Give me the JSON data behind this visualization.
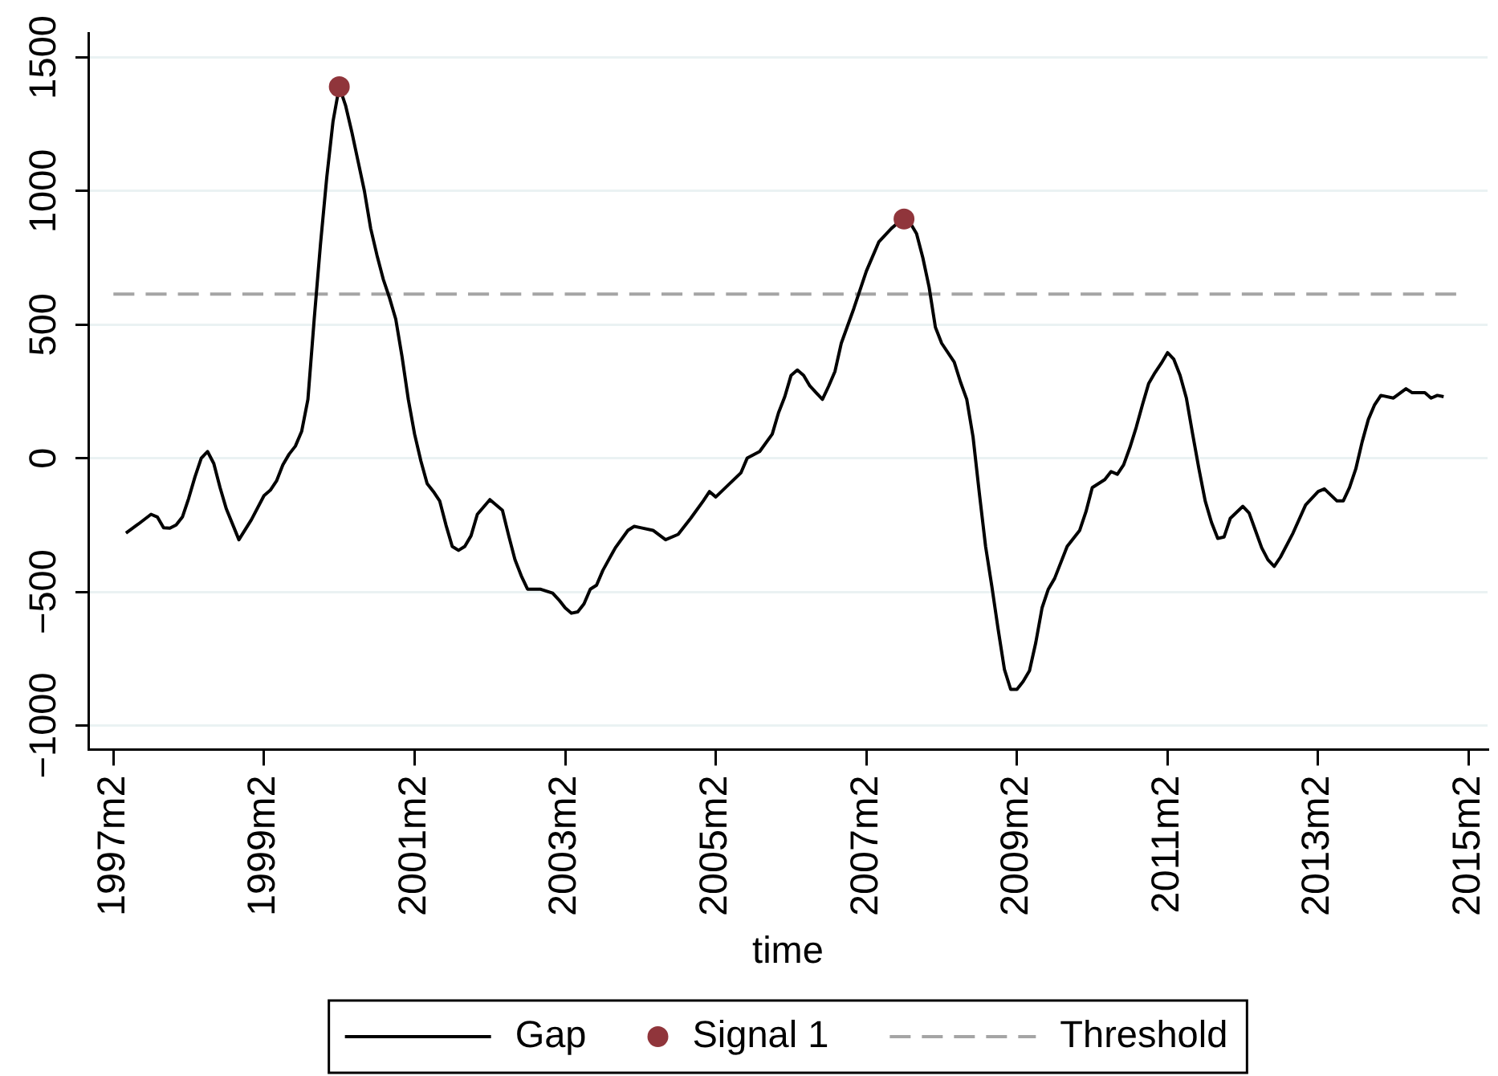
{
  "chart_data": {
    "type": "line",
    "xlabel": "time",
    "series": [
      {
        "name": "Gap",
        "type": "line",
        "color": "#000000",
        "x": [
          "1997-04",
          "1997-06",
          "1997-08",
          "1997-09",
          "1997-10",
          "1997-11",
          "1997-12",
          "1998-01",
          "1998-02",
          "1998-03",
          "1998-04",
          "1998-05",
          "1998-06",
          "1998-07",
          "1998-08",
          "1998-10",
          "1998-12",
          "1999-02",
          "1999-03",
          "1999-04",
          "1999-05",
          "1999-06",
          "1999-07",
          "1999-08",
          "1999-09",
          "1999-10",
          "1999-11",
          "1999-12",
          "2000-01",
          "2000-02",
          "2000-03",
          "2000-04",
          "2000-05",
          "2000-06",
          "2000-07",
          "2000-08",
          "2000-09",
          "2000-10",
          "2000-11",
          "2000-12",
          "2001-01",
          "2001-02",
          "2001-03",
          "2001-04",
          "2001-05",
          "2001-06",
          "2001-07",
          "2001-08",
          "2001-09",
          "2001-10",
          "2001-11",
          "2001-12",
          "2002-02",
          "2002-04",
          "2002-05",
          "2002-06",
          "2002-07",
          "2002-08",
          "2002-10",
          "2002-12",
          "2003-01",
          "2003-02",
          "2003-03",
          "2003-04",
          "2003-05",
          "2003-06",
          "2003-07",
          "2003-08",
          "2003-10",
          "2003-12",
          "2004-01",
          "2004-02",
          "2004-04",
          "2004-06",
          "2004-08",
          "2004-10",
          "2004-12",
          "2005-01",
          "2005-02",
          "2005-04",
          "2005-06",
          "2005-07",
          "2005-09",
          "2005-11",
          "2005-12",
          "2006-01",
          "2006-02",
          "2006-03",
          "2006-04",
          "2006-05",
          "2006-07",
          "2006-08",
          "2006-09",
          "2006-10",
          "2006-12",
          "2007-02",
          "2007-04",
          "2007-06",
          "2007-07",
          "2007-08",
          "2007-09",
          "2007-10",
          "2007-11",
          "2007-12",
          "2008-01",
          "2008-02",
          "2008-04",
          "2008-05",
          "2008-06",
          "2008-07",
          "2008-08",
          "2008-09",
          "2008-10",
          "2008-11",
          "2008-12",
          "2009-01",
          "2009-02",
          "2009-03",
          "2009-04",
          "2009-05",
          "2009-06",
          "2009-07",
          "2009-08",
          "2009-10",
          "2009-12",
          "2010-01",
          "2010-02",
          "2010-04",
          "2010-05",
          "2010-06",
          "2010-07",
          "2010-08",
          "2010-09",
          "2010-10",
          "2010-11",
          "2010-12",
          "2011-01",
          "2011-02",
          "2011-03",
          "2011-04",
          "2011-05",
          "2011-06",
          "2011-07",
          "2011-08",
          "2011-09",
          "2011-10",
          "2011-11",
          "2011-12",
          "2012-02",
          "2012-03",
          "2012-04",
          "2012-05",
          "2012-06",
          "2012-07",
          "2012-08",
          "2012-10",
          "2012-12",
          "2013-02",
          "2013-03",
          "2013-05",
          "2013-06",
          "2013-07",
          "2013-08",
          "2013-09",
          "2013-10",
          "2013-11",
          "2013-12",
          "2014-02",
          "2014-04",
          "2014-05",
          "2014-07",
          "2014-08",
          "2014-09",
          "2014-10"
        ],
        "values": [
          -280,
          -246,
          -210,
          -220,
          -260,
          -262,
          -250,
          -220,
          -150,
          -70,
          0,
          25,
          -20,
          -110,
          -190,
          -305,
          -230,
          -140,
          -120,
          -85,
          -25,
          15,
          45,
          100,
          220,
          520,
          800,
          1050,
          1260,
          1390,
          1320,
          1220,
          1110,
          1000,
          860,
          760,
          670,
          600,
          520,
          380,
          220,
          90,
          -10,
          -95,
          -125,
          -160,
          -250,
          -330,
          -345,
          -330,
          -290,
          -210,
          -155,
          -195,
          -290,
          -380,
          -440,
          -490,
          -490,
          -505,
          -530,
          -560,
          -580,
          -575,
          -545,
          -490,
          -475,
          -420,
          -335,
          -270,
          -255,
          -260,
          -270,
          -305,
          -285,
          -225,
          -160,
          -125,
          -145,
          -100,
          -55,
          0,
          25,
          90,
          170,
          230,
          310,
          330,
          310,
          270,
          220,
          270,
          325,
          430,
          560,
          700,
          810,
          860,
          880,
          895,
          880,
          840,
          750,
          640,
          490,
          430,
          360,
          285,
          220,
          80,
          -130,
          -330,
          -480,
          -640,
          -790,
          -865,
          -865,
          -835,
          -795,
          -690,
          -560,
          -490,
          -450,
          -330,
          -270,
          -200,
          -110,
          -80,
          -50,
          -60,
          -25,
          40,
          115,
          200,
          280,
          320,
          355,
          395,
          370,
          310,
          225,
          90,
          -40,
          -160,
          -240,
          -300,
          -295,
          -225,
          -180,
          -205,
          -270,
          -335,
          -380,
          -405,
          -370,
          -280,
          -175,
          -125,
          -115,
          -160,
          -160,
          -110,
          -40,
          60,
          145,
          200,
          235,
          225,
          260,
          245,
          245,
          225,
          235,
          230
        ]
      },
      {
        "name": "Signal 1",
        "type": "scatter",
        "color": "#90353b",
        "marker": "circle",
        "x": [
          "2000-02",
          "2007-08"
        ],
        "values": [
          1390,
          895
        ]
      },
      {
        "name": "Threshold",
        "type": "line",
        "color": "#a5a5a5",
        "line_style": "dashed",
        "x": [
          "1997-02",
          "2014-12"
        ],
        "values": [
          614,
          614
        ]
      }
    ],
    "xlim": [
      "1996-10",
      "2015-05"
    ],
    "xticks": [
      {
        "value": "1997-02",
        "label": "1997m2"
      },
      {
        "value": "1999-02",
        "label": "1999m2"
      },
      {
        "value": "2001-02",
        "label": "2001m2"
      },
      {
        "value": "2003-02",
        "label": "2003m2"
      },
      {
        "value": "2005-02",
        "label": "2005m2"
      },
      {
        "value": "2007-02",
        "label": "2007m2"
      },
      {
        "value": "2009-02",
        "label": "2009m2"
      },
      {
        "value": "2011-02",
        "label": "2011m2"
      },
      {
        "value": "2013-02",
        "label": "2013m2"
      },
      {
        "value": "2015-02",
        "label": "2015m2"
      }
    ],
    "ylim": [
      -1090,
      1590
    ],
    "yticks": [
      {
        "value": -1000,
        "label": "−1000"
      },
      {
        "value": -500,
        "label": "−500"
      },
      0,
      500,
      1000,
      1500
    ],
    "grid": "y",
    "legend": "bottom"
  }
}
